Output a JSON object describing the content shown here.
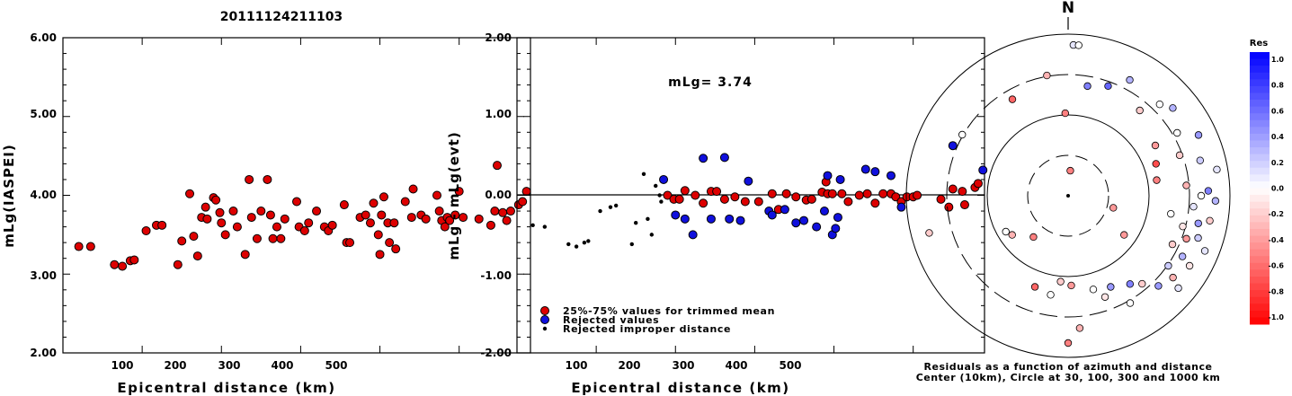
{
  "figure_title": "20111124211103",
  "chart_data": [
    {
      "type": "scatter",
      "xlabel": "Epicentral distance (km)",
      "ylabel": "mLg(IASPEI)",
      "xlim": [
        0,
        590
      ],
      "ylim": [
        2.0,
        6.0
      ],
      "xticks": [
        "100",
        "200",
        "300",
        "400",
        "500"
      ],
      "yticks": [
        "2.00",
        "3.00",
        "4.00",
        "5.00",
        "6.00"
      ],
      "series": [
        {
          "color": "#dd0000",
          "points": [
            [
              20,
              3.35
            ],
            [
              35,
              3.35
            ],
            [
              65,
              3.12
            ],
            [
              75,
              3.1
            ],
            [
              85,
              3.17
            ],
            [
              90,
              3.18
            ],
            [
              105,
              3.55
            ],
            [
              118,
              3.62
            ],
            [
              125,
              3.62
            ],
            [
              145,
              3.12
            ],
            [
              150,
              3.42
            ],
            [
              160,
              4.02
            ],
            [
              165,
              3.48
            ],
            [
              170,
              3.23
            ],
            [
              175,
              3.72
            ],
            [
              180,
              3.85
            ],
            [
              182,
              3.7
            ],
            [
              190,
              3.97
            ],
            [
              193,
              3.94
            ],
            [
              198,
              3.78
            ],
            [
              200,
              3.65
            ],
            [
              205,
              3.5
            ],
            [
              215,
              3.8
            ],
            [
              220,
              3.6
            ],
            [
              230,
              3.25
            ],
            [
              235,
              4.2
            ],
            [
              238,
              3.72
            ],
            [
              245,
              3.45
            ],
            [
              250,
              3.8
            ],
            [
              258,
              4.2
            ],
            [
              262,
              3.75
            ],
            [
              265,
              3.45
            ],
            [
              270,
              3.6
            ],
            [
              275,
              3.45
            ],
            [
              280,
              3.7
            ],
            [
              295,
              3.92
            ],
            [
              298,
              3.6
            ],
            [
              305,
              3.55
            ],
            [
              310,
              3.65
            ],
            [
              320,
              3.8
            ],
            [
              330,
              3.6
            ],
            [
              335,
              3.55
            ],
            [
              340,
              3.62
            ],
            [
              355,
              3.88
            ],
            [
              358,
              3.4
            ],
            [
              362,
              3.4
            ],
            [
              375,
              3.72
            ],
            [
              382,
              3.75
            ],
            [
              388,
              3.65
            ],
            [
              392,
              3.9
            ],
            [
              398,
              3.5
            ],
            [
              400,
              3.25
            ],
            [
              402,
              3.75
            ],
            [
              405,
              3.98
            ],
            [
              410,
              3.65
            ],
            [
              412,
              3.4
            ],
            [
              418,
              3.65
            ],
            [
              420,
              3.32
            ],
            [
              432,
              3.92
            ],
            [
              440,
              3.72
            ],
            [
              442,
              4.08
            ],
            [
              452,
              3.75
            ],
            [
              458,
              3.7
            ],
            [
              472,
              4.0
            ],
            [
              475,
              3.8
            ],
            [
              478,
              3.68
            ],
            [
              482,
              3.6
            ],
            [
              485,
              3.72
            ],
            [
              488,
              3.68
            ],
            [
              495,
              3.75
            ],
            [
              500,
              4.05
            ],
            [
              505,
              3.72
            ],
            [
              525,
              3.7
            ],
            [
              540,
              3.62
            ],
            [
              545,
              3.8
            ],
            [
              548,
              4.38
            ],
            [
              555,
              3.78
            ],
            [
              560,
              3.68
            ],
            [
              565,
              3.8
            ],
            [
              575,
              3.88
            ],
            [
              580,
              3.92
            ],
            [
              585,
              4.05
            ]
          ]
        }
      ]
    },
    {
      "type": "scatter",
      "xlabel": "Epicentral distance (km)",
      "ylabel": "mLg - mLg(evt)",
      "xlim": [
        0,
        590
      ],
      "ylim": [
        -2.0,
        2.0
      ],
      "xticks": [
        "100",
        "200",
        "300",
        "400",
        "500"
      ],
      "yticks": [
        "-2.00",
        "-1.00",
        "0.00",
        "1.00",
        "2.00"
      ],
      "annotation": "mLg= 3.74",
      "reference_line": 0.0,
      "series": [
        {
          "name": "25%-75% values for trimmed mean",
          "color": "#dd0000",
          "marker": "circle",
          "points": [
            [
              190,
              0.0
            ],
            [
              198,
              -0.05
            ],
            [
              205,
              -0.05
            ],
            [
              212,
              0.06
            ],
            [
              225,
              0.0
            ],
            [
              235,
              -0.1
            ],
            [
              245,
              0.05
            ],
            [
              252,
              0.05
            ],
            [
              262,
              -0.05
            ],
            [
              275,
              -0.02
            ],
            [
              288,
              -0.08
            ],
            [
              305,
              -0.08
            ],
            [
              322,
              0.02
            ],
            [
              330,
              -0.18
            ],
            [
              340,
              0.02
            ],
            [
              352,
              -0.02
            ],
            [
              365,
              -0.06
            ],
            [
              372,
              -0.05
            ],
            [
              385,
              0.04
            ],
            [
              390,
              0.17
            ],
            [
              392,
              0.02
            ],
            [
              398,
              0.02
            ],
            [
              410,
              0.02
            ],
            [
              418,
              -0.08
            ],
            [
              432,
              0.0
            ],
            [
              442,
              0.02
            ],
            [
              452,
              -0.1
            ],
            [
              462,
              0.02
            ],
            [
              472,
              0.02
            ],
            [
              478,
              -0.02
            ],
            [
              485,
              -0.08
            ],
            [
              492,
              -0.02
            ],
            [
              500,
              -0.02
            ],
            [
              505,
              0.0
            ],
            [
              535,
              -0.05
            ],
            [
              545,
              -0.15
            ],
            [
              550,
              0.08
            ],
            [
              562,
              0.05
            ],
            [
              565,
              -0.12
            ],
            [
              578,
              0.1
            ],
            [
              582,
              0.15
            ]
          ]
        },
        {
          "name": "Rejected values",
          "color": "#1010dd",
          "marker": "circle",
          "points": [
            [
              185,
              0.2
            ],
            [
              200,
              -0.25
            ],
            [
              212,
              -0.3
            ],
            [
              222,
              -0.5
            ],
            [
              235,
              0.47
            ],
            [
              245,
              -0.3
            ],
            [
              262,
              0.48
            ],
            [
              268,
              -0.3
            ],
            [
              282,
              -0.32
            ],
            [
              292,
              0.18
            ],
            [
              318,
              -0.2
            ],
            [
              322,
              -0.25
            ],
            [
              338,
              -0.18
            ],
            [
              352,
              -0.35
            ],
            [
              362,
              -0.32
            ],
            [
              378,
              -0.4
            ],
            [
              388,
              -0.2
            ],
            [
              392,
              0.25
            ],
            [
              398,
              -0.5
            ],
            [
              402,
              -0.42
            ],
            [
              405,
              -0.28
            ],
            [
              408,
              0.2
            ],
            [
              440,
              0.33
            ],
            [
              452,
              0.3
            ],
            [
              472,
              0.25
            ],
            [
              485,
              -0.15
            ],
            [
              550,
              0.63
            ],
            [
              588,
              0.32
            ]
          ]
        },
        {
          "name": "Rejected improper distance",
          "color": "#000000",
          "marker": "dot",
          "points": [
            [
              20,
              -0.38
            ],
            [
              35,
              -0.4
            ],
            [
              65,
              -0.62
            ],
            [
              75,
              -0.65
            ],
            [
              85,
              -0.6
            ],
            [
              90,
              -0.58
            ],
            [
              105,
              -0.2
            ],
            [
              118,
              -0.15
            ],
            [
              125,
              -0.13
            ],
            [
              145,
              -0.62
            ],
            [
              150,
              -0.35
            ],
            [
              160,
              0.27
            ],
            [
              165,
              -0.3
            ],
            [
              170,
              -0.5
            ],
            [
              175,
              0.12
            ],
            [
              180,
              0.0
            ],
            [
              182,
              -0.08
            ]
          ]
        }
      ]
    },
    {
      "type": "polar-scatter",
      "title": "N",
      "caption_line1": "Residuals as a function of azimuth and distance",
      "caption_line2": "Center (10km), Circle at 30, 100, 300 and 1000 km",
      "colorbar_title": "Res",
      "colorbar_labels": [
        "1.0",
        "0.8",
        "0.6",
        "0.4",
        "0.2",
        "0.0",
        "-0.2",
        "-0.4",
        "-0.6",
        "-0.8",
        "-1.0"
      ],
      "rings_km": [
        30,
        100,
        300,
        1000
      ],
      "stations": [
        [
          2,
          420,
          0.1
        ],
        [
          4,
          420,
          0.0
        ],
        [
          10,
          310,
          0.5
        ],
        [
          20,
          325,
          0.6
        ],
        [
          28,
          365,
          0.3
        ],
        [
          350,
          340,
          -0.3
        ],
        [
          358,
          230,
          -0.5
        ],
        [
          5,
          70,
          -0.5
        ],
        [
          40,
          310,
          -0.2
        ],
        [
          45,
          360,
          0.0
        ],
        [
          50,
          380,
          0.3
        ],
        [
          60,
          350,
          0.0
        ],
        [
          65,
          400,
          0.4
        ],
        [
          70,
          330,
          -0.2
        ],
        [
          75,
          380,
          0.2
        ],
        [
          80,
          420,
          0.1
        ],
        [
          85,
          330,
          -0.3
        ],
        [
          88,
          390,
          0.5
        ],
        [
          90,
          370,
          0.0
        ],
        [
          92,
          410,
          0.3
        ],
        [
          95,
          350,
          0.1
        ],
        [
          100,
          400,
          -0.2
        ],
        [
          102,
          370,
          0.4
        ],
        [
          105,
          330,
          -0.1
        ],
        [
          108,
          380,
          0.2
        ],
        [
          110,
          350,
          -0.4
        ],
        [
          112,
          410,
          0.1
        ],
        [
          115,
          320,
          -0.2
        ],
        [
          118,
          360,
          0.3
        ],
        [
          120,
          390,
          -0.1
        ],
        [
          125,
          340,
          0.2
        ],
        [
          128,
          370,
          -0.3
        ],
        [
          130,
          400,
          0.1
        ],
        [
          135,
          355,
          0.4
        ],
        [
          140,
          320,
          -0.2
        ],
        [
          145,
          300,
          0.5
        ],
        [
          150,
          345,
          0.0
        ],
        [
          155,
          280,
          0.4
        ],
        [
          160,
          300,
          -0.1
        ],
        [
          165,
          270,
          0.0
        ],
        [
          175,
          370,
          -0.3
        ],
        [
          178,
          250,
          -0.4
        ],
        [
          180,
          410,
          -0.5
        ],
        [
          185,
          240,
          -0.2
        ],
        [
          190,
          280,
          0.0
        ],
        [
          200,
          270,
          -0.6
        ],
        [
          220,
          150,
          -0.5
        ],
        [
          235,
          190,
          -0.3
        ],
        [
          240,
          200,
          0.0
        ],
        [
          255,
          400,
          -0.2
        ],
        [
          300,
          340,
          0.0
        ],
        [
          330,
          310,
          -0.6
        ],
        [
          105,
          130,
          -0.4
        ],
        [
          125,
          190,
          -0.4
        ],
        [
          80,
          250,
          -0.5
        ],
        [
          70,
          260,
          -0.7
        ],
        [
          60,
          280,
          -0.4
        ],
        [
          100,
          290,
          0.0
        ]
      ]
    }
  ]
}
